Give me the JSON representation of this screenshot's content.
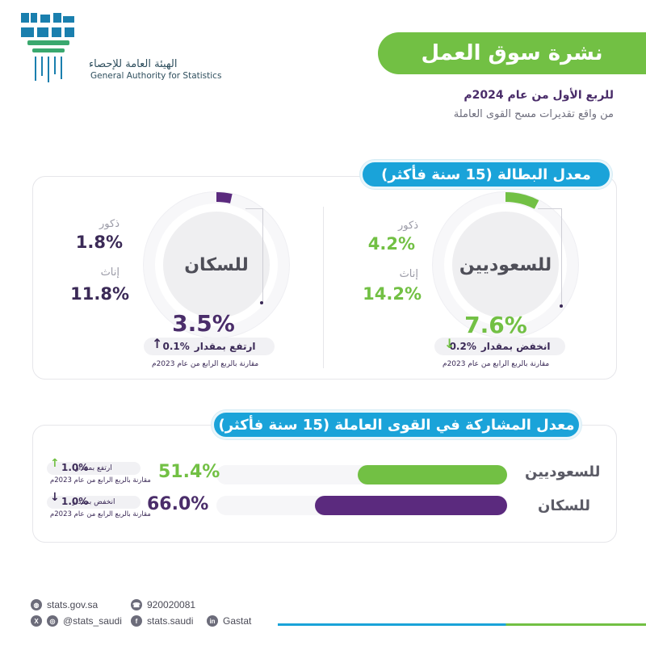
{
  "logo": {
    "icon_name": "gastat-logo-icon",
    "arabic_name": "الهيئة العامة للإحصاء",
    "english_name": "General Authority for Statistics"
  },
  "header": {
    "title": "نشرة سوق العمل",
    "subtitle_1": "للربع الأول من عام 2024م",
    "subtitle_2": "من واقع تقديرات مسح القوى العاملة"
  },
  "unemployment": {
    "section_title": "معدل البطالة (15 سنة فأكثر)",
    "saudis": {
      "label": "للسعوديين",
      "male_label": "ذكور",
      "male_value": "4.2%",
      "female_label": "إناث",
      "female_value": "14.2%",
      "overall_value": "7.6%",
      "overall_percent": 7.6,
      "change_text": "انخفض بمقدار",
      "change_value": "0.2%",
      "change_direction": "down",
      "comparison_note": "مقارنة بالربع الرابع من عام 2023م",
      "color": "#72c044"
    },
    "population": {
      "label": "للسكان",
      "male_label": "ذكور",
      "male_value": "1.8%",
      "female_label": "إناث",
      "female_value": "11.8%",
      "overall_value": "3.5%",
      "overall_percent": 3.5,
      "change_text": "ارتفع بمقدار",
      "change_value": "0.1%",
      "change_direction": "up",
      "comparison_note": "مقارنة بالربع الرابع من عام 2023م",
      "color": "#5b2a7e"
    }
  },
  "participation": {
    "section_title": "معدل المشاركة في القوى العاملة (15 سنة فأكثر)",
    "rows": [
      {
        "label": "للسعوديين",
        "value": "51.4%",
        "percent": 51.4,
        "change_text": "ارتفع بمقدار",
        "change_value": "1.0%",
        "change_direction": "up",
        "comparison_note": "مقارنة بالربع الرابع من عام 2023م",
        "color": "#72c044"
      },
      {
        "label": "للسكان",
        "value": "66.0%",
        "percent": 66.0,
        "change_text": "انخفض بمقدار",
        "change_value": "1.0%",
        "change_direction": "down",
        "comparison_note": "مقارنة بالربع الرابع من عام 2023م",
        "color": "#5b2a7e"
      }
    ]
  },
  "footer": {
    "website": "stats.gov.sa",
    "phone": "920020081",
    "handle_x": "@stats_saudi",
    "facebook": "stats.saudi",
    "linkedin": "Gastat"
  }
}
